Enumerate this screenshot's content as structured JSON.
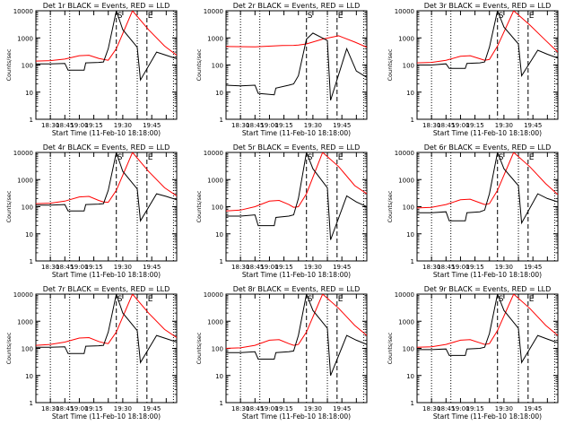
{
  "chart_data": [
    {
      "type": "line",
      "title": "Det 1r BLACK = Events, RED = LLD",
      "xlabel": "Start Time (11-Feb-10 18:18:00)",
      "ylabel": "Counts/sec",
      "yscale": "log",
      "ylim": [
        1,
        10000
      ],
      "ytick_labels": [
        "1",
        "10",
        "100",
        "1000",
        "10000"
      ],
      "xtick_labels": [
        "18:30",
        "18:45",
        "19:00",
        "19:15",
        "19:30",
        "19:45"
      ],
      "markers": {
        "S": "S",
        "E": "E"
      },
      "series": [
        {
          "color": "#ff0000",
          "x": [
            0,
            18,
            36,
            54,
            66,
            78,
            84,
            90,
            100,
            120,
            140,
            160,
            175
          ],
          "y": [
            140,
            145,
            165,
            220,
            230,
            175,
            160,
            150,
            400,
            10000,
            2000,
            500,
            230
          ]
        },
        {
          "color": "#000000",
          "x": [
            0,
            18,
            36,
            40,
            60,
            62,
            78,
            84,
            90,
            100,
            108,
            126,
            130,
            150,
            162,
            175
          ],
          "y": [
            110,
            110,
            115,
            65,
            65,
            120,
            125,
            130,
            400,
            10000,
            2000,
            450,
            28,
            300,
            230,
            170
          ]
        }
      ]
    },
    {
      "type": "line",
      "title": "Det 2r BLACK = Events, RED = LLD",
      "xlabel": "Start Time (11-Feb-10 18:18:00)",
      "ylabel": "Counts/sec",
      "yscale": "log",
      "ylim": [
        1,
        10000
      ],
      "ytick_labels": [
        "1",
        "10",
        "100",
        "1000",
        "10000"
      ],
      "xtick_labels": [
        "18:30",
        "18:45",
        "19:00",
        "19:15",
        "19:30",
        "19:45"
      ],
      "markers": {
        "S": "S",
        "E": "E"
      },
      "series": [
        {
          "color": "#ff0000",
          "x": [
            0,
            36,
            70,
            84,
            90,
            100,
            120,
            140,
            160,
            175
          ],
          "y": [
            480,
            470,
            520,
            530,
            540,
            600,
            900,
            1200,
            700,
            450
          ]
        },
        {
          "color": "#000000",
          "x": [
            0,
            18,
            36,
            40,
            60,
            62,
            78,
            84,
            90,
            100,
            108,
            126,
            130,
            150,
            162,
            175
          ],
          "y": [
            18,
            17,
            18,
            9,
            8,
            14,
            18,
            20,
            40,
            900,
            1500,
            800,
            5,
            400,
            60,
            35
          ]
        }
      ]
    },
    {
      "type": "line",
      "title": "Det 3r BLACK = Events, RED = LLD",
      "xlabel": "Start Time (11-Feb-10 18:18:00)",
      "ylabel": "Counts/sec",
      "yscale": "log",
      "ylim": [
        1,
        10000
      ],
      "ytick_labels": [
        "1",
        "10",
        "100",
        "1000",
        "10000"
      ],
      "xtick_labels": [
        "18:30",
        "18:45",
        "19:00",
        "19:15",
        "19:30",
        "19:45"
      ],
      "markers": {
        "S": "S",
        "E": "E"
      },
      "series": [
        {
          "color": "#ff0000",
          "x": [
            0,
            18,
            36,
            54,
            66,
            78,
            84,
            90,
            100,
            120,
            140,
            160,
            175
          ],
          "y": [
            120,
            125,
            150,
            210,
            220,
            170,
            150,
            160,
            500,
            10000,
            3000,
            800,
            300
          ]
        },
        {
          "color": "#000000",
          "x": [
            0,
            18,
            36,
            40,
            60,
            62,
            78,
            84,
            90,
            100,
            108,
            126,
            130,
            150,
            162,
            175
          ],
          "y": [
            100,
            100,
            110,
            75,
            75,
            115,
            120,
            130,
            450,
            10000,
            2500,
            600,
            40,
            350,
            250,
            180
          ]
        }
      ]
    },
    {
      "type": "line",
      "title": "Det 4r BLACK = Events, RED = LLD",
      "xlabel": "Start Time (11-Feb-10 18:18:00)",
      "ylabel": "Counts/sec",
      "yscale": "log",
      "ylim": [
        1,
        10000
      ],
      "ytick_labels": [
        "1",
        "10",
        "100",
        "1000",
        "10000"
      ],
      "xtick_labels": [
        "18:30",
        "18:45",
        "19:00",
        "19:15",
        "19:30",
        "19:45"
      ],
      "markers": {
        "S": "S",
        "E": "E"
      },
      "series": [
        {
          "color": "#ff0000",
          "x": [
            0,
            18,
            36,
            54,
            66,
            78,
            84,
            90,
            100,
            120,
            140,
            160,
            175
          ],
          "y": [
            130,
            135,
            160,
            230,
            240,
            170,
            150,
            145,
            400,
            10000,
            2000,
            500,
            250
          ]
        },
        {
          "color": "#000000",
          "x": [
            0,
            18,
            36,
            40,
            60,
            62,
            78,
            84,
            90,
            100,
            108,
            126,
            130,
            150,
            162,
            175
          ],
          "y": [
            115,
            115,
            120,
            70,
            70,
            120,
            125,
            130,
            400,
            10000,
            2000,
            450,
            30,
            300,
            240,
            180
          ]
        }
      ]
    },
    {
      "type": "line",
      "title": "Det 5r BLACK = Events, RED = LLD",
      "xlabel": "Start Time (11-Feb-10 18:18:00)",
      "ylabel": "Counts/sec",
      "yscale": "log",
      "ylim": [
        1,
        10000
      ],
      "ytick_labels": [
        "1",
        "10",
        "100",
        "1000",
        "10000"
      ],
      "xtick_labels": [
        "18:30",
        "18:45",
        "19:00",
        "19:15",
        "19:30",
        "19:45"
      ],
      "markers": {
        "S": "S",
        "E": "E"
      },
      "series": [
        {
          "color": "#ff0000",
          "x": [
            0,
            18,
            36,
            54,
            66,
            78,
            84,
            90,
            100,
            120,
            140,
            160,
            175
          ],
          "y": [
            70,
            75,
            100,
            160,
            170,
            120,
            95,
            100,
            300,
            10000,
            3000,
            600,
            300
          ]
        },
        {
          "color": "#000000",
          "x": [
            0,
            18,
            36,
            40,
            60,
            62,
            78,
            84,
            90,
            100,
            108,
            126,
            130,
            150,
            162,
            175
          ],
          "y": [
            45,
            45,
            50,
            20,
            20,
            40,
            45,
            50,
            200,
            10000,
            2500,
            500,
            6,
            250,
            150,
            100
          ]
        }
      ]
    },
    {
      "type": "line",
      "title": "Det 6r BLACK = Events, RED = LLD",
      "xlabel": "Start Time (11-Feb-10 18:18:00)",
      "ylabel": "Counts/sec",
      "yscale": "log",
      "ylim": [
        1,
        10000
      ],
      "ytick_labels": [
        "1",
        "10",
        "100",
        "1000",
        "10000"
      ],
      "xtick_labels": [
        "18:30",
        "18:45",
        "19:00",
        "19:15",
        "19:30",
        "19:45"
      ],
      "markers": {
        "S": "S",
        "E": "E"
      },
      "series": [
        {
          "color": "#ff0000",
          "x": [
            0,
            18,
            36,
            54,
            66,
            78,
            84,
            90,
            100,
            120,
            140,
            160,
            175
          ],
          "y": [
            90,
            95,
            120,
            180,
            190,
            140,
            120,
            130,
            400,
            10000,
            3000,
            700,
            280
          ]
        },
        {
          "color": "#000000",
          "x": [
            0,
            18,
            36,
            40,
            60,
            62,
            78,
            84,
            90,
            100,
            108,
            126,
            130,
            150,
            162,
            175
          ],
          "y": [
            60,
            60,
            65,
            30,
            30,
            60,
            65,
            75,
            300,
            10000,
            2500,
            600,
            25,
            300,
            200,
            150
          ]
        }
      ]
    },
    {
      "type": "line",
      "title": "Det 7r BLACK = Events, RED = LLD",
      "xlabel": "Start Time (11-Feb-10 18:18:00)",
      "ylabel": "Counts/sec",
      "yscale": "log",
      "ylim": [
        1,
        10000
      ],
      "ytick_labels": [
        "1",
        "10",
        "100",
        "1000",
        "10000"
      ],
      "xtick_labels": [
        "18:30",
        "18:45",
        "19:00",
        "19:15",
        "19:30",
        "19:45"
      ],
      "markers": {
        "S": "S",
        "E": "E"
      },
      "series": [
        {
          "color": "#ff0000",
          "x": [
            0,
            18,
            36,
            54,
            66,
            78,
            84,
            90,
            100,
            120,
            140,
            160,
            175
          ],
          "y": [
            130,
            140,
            170,
            240,
            250,
            180,
            160,
            150,
            400,
            10000,
            2000,
            500,
            250
          ]
        },
        {
          "color": "#000000",
          "x": [
            0,
            18,
            36,
            40,
            60,
            62,
            78,
            84,
            90,
            100,
            108,
            126,
            130,
            150,
            162,
            175
          ],
          "y": [
            110,
            110,
            115,
            65,
            65,
            120,
            125,
            130,
            400,
            10000,
            2000,
            450,
            30,
            300,
            230,
            170
          ]
        }
      ]
    },
    {
      "type": "line",
      "title": "Det 8r BLACK = Events, RED = LLD",
      "xlabel": "Start Time (11-Feb-10 18:18:00)",
      "ylabel": "Counts/sec",
      "yscale": "log",
      "ylim": [
        1,
        10000
      ],
      "ytick_labels": [
        "1",
        "10",
        "100",
        "1000",
        "10000"
      ],
      "xtick_labels": [
        "18:30",
        "18:45",
        "19:00",
        "19:15",
        "19:30",
        "19:45"
      ],
      "markers": {
        "S": "S",
        "E": "E"
      },
      "series": [
        {
          "color": "#ff0000",
          "x": [
            0,
            18,
            36,
            54,
            66,
            78,
            84,
            90,
            100,
            120,
            140,
            160,
            175
          ],
          "y": [
            100,
            105,
            130,
            200,
            210,
            150,
            130,
            140,
            400,
            10000,
            3000,
            700,
            300
          ]
        },
        {
          "color": "#000000",
          "x": [
            0,
            18,
            36,
            40,
            60,
            62,
            78,
            84,
            90,
            100,
            108,
            126,
            130,
            150,
            162,
            175
          ],
          "y": [
            70,
            70,
            75,
            40,
            40,
            70,
            75,
            80,
            300,
            10000,
            2500,
            550,
            10,
            300,
            200,
            140
          ]
        }
      ]
    },
    {
      "type": "line",
      "title": "Det 9r BLACK = Events, RED = LLD",
      "xlabel": "Start Time (11-Feb-10 18:18:00)",
      "ylabel": "Counts/sec",
      "yscale": "log",
      "ylim": [
        1,
        10000
      ],
      "ytick_labels": [
        "1",
        "10",
        "100",
        "1000",
        "10000"
      ],
      "xtick_labels": [
        "18:30",
        "18:45",
        "19:00",
        "19:15",
        "19:30",
        "19:45"
      ],
      "markers": {
        "S": "S",
        "E": "E"
      },
      "series": [
        {
          "color": "#ff0000",
          "x": [
            0,
            18,
            36,
            54,
            66,
            78,
            84,
            90,
            100,
            120,
            140,
            160,
            175
          ],
          "y": [
            110,
            115,
            140,
            200,
            210,
            160,
            140,
            150,
            450,
            10000,
            3000,
            700,
            300
          ]
        },
        {
          "color": "#000000",
          "x": [
            0,
            18,
            36,
            40,
            60,
            62,
            78,
            84,
            90,
            100,
            108,
            126,
            130,
            150,
            162,
            175
          ],
          "y": [
            90,
            90,
            95,
            55,
            55,
            95,
            100,
            110,
            350,
            10000,
            2500,
            550,
            30,
            300,
            220,
            160
          ]
        }
      ]
    }
  ]
}
